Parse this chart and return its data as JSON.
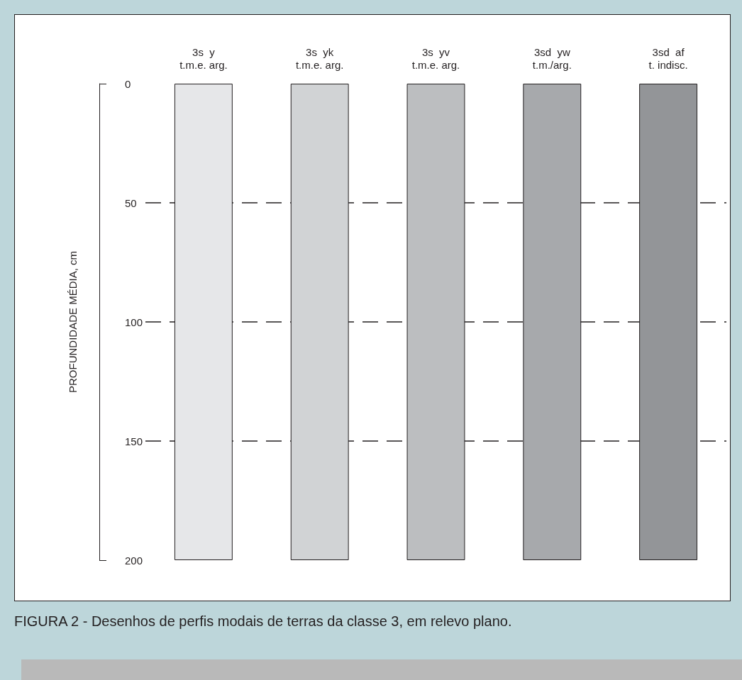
{
  "chart_data": {
    "type": "bar",
    "ylabel": "PROFUNDIDADE MÉDIA, cm",
    "categories": [
      "3s  y\nt.m.e. arg.",
      "3s  yk\nt.m.e. arg.",
      "3s  yv\nt.m.e. arg.",
      "3sd  yw\nt.m./arg.",
      "3sd  af\nt. indisc."
    ],
    "values": [
      200,
      200,
      200,
      200,
      200
    ],
    "colors": [
      "#e6e7e9",
      "#d1d3d5",
      "#bcbec0",
      "#a7a9ac",
      "#939598"
    ],
    "ylim": [
      200,
      0
    ],
    "yticks": [
      0,
      50,
      100,
      150,
      200
    ],
    "grid": "y",
    "annotations": [
      "FIGURA 2 - Desenhos de perfis modais de terras da classe 3, em relevo plano."
    ]
  }
}
